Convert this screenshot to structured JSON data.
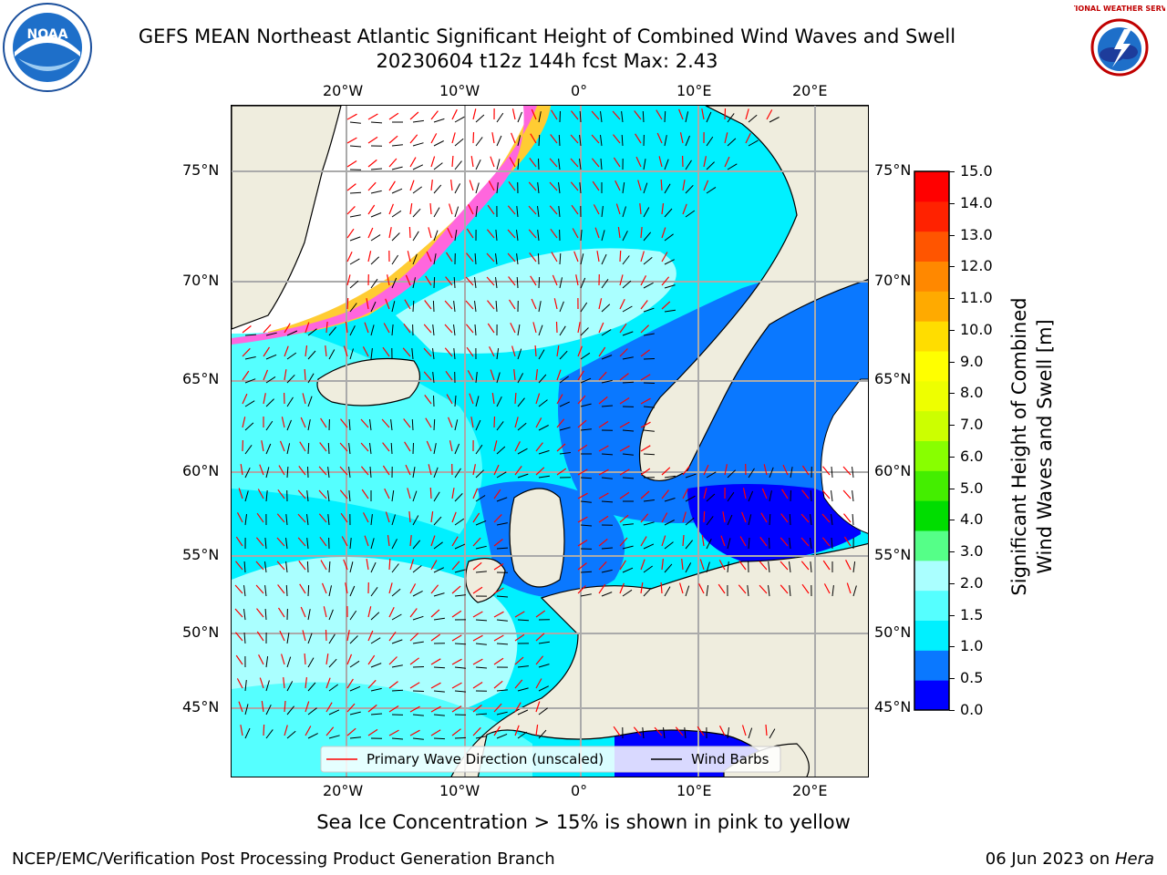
{
  "title": {
    "line1": "GEFS MEAN Northeast Atlantic Significant Height of Combined Wind Waves and Swell",
    "line2": "20230604 t12z 144h fcst   Max: 2.43"
  },
  "logos": {
    "left": {
      "icon": "noaa-logo",
      "text": "NOAA"
    },
    "right": {
      "icon": "nws-logo",
      "text": "NATIONAL WEATHER SERVICE"
    }
  },
  "map": {
    "lon_ticks_top": [
      "20°W",
      "10°W",
      "0°",
      "10°E",
      "20°E"
    ],
    "lon_ticks_bottom": [
      "20°W",
      "10°W",
      "0°",
      "10°E",
      "20°E"
    ],
    "lat_ticks_left": [
      "75°N",
      "70°N",
      "65°N",
      "60°N",
      "55°N",
      "50°N",
      "45°N"
    ],
    "lat_ticks_right": [
      "75°N",
      "70°N",
      "65°N",
      "60°N",
      "55°N",
      "50°N",
      "45°N"
    ],
    "legend": {
      "wave_direction": "Primary Wave Direction (unscaled)",
      "wind_barbs": "Wind Barbs"
    },
    "colors": {
      "land": "#efedde",
      "sea_ice_white": "#ffffff"
    }
  },
  "colorbar": {
    "label_line1": "Significant Height of Combined",
    "label_line2": "Wind Waves and Swell [m]",
    "ticks": [
      "15.0",
      "14.0",
      "13.0",
      "12.0",
      "11.0",
      "10.0",
      "9.0",
      "8.0",
      "7.0",
      "6.0",
      "5.0",
      "4.0",
      "3.0",
      "2.0",
      "1.5",
      "1.0",
      "0.5",
      "0.0"
    ],
    "colors": [
      "#0000ff",
      "#0a78ff",
      "#00f0ff",
      "#55ffff",
      "#aaffff",
      "#55ff88",
      "#00dd00",
      "#44ee00",
      "#88ff00",
      "#ccff00",
      "#eeff00",
      "#ffff00",
      "#ffdd00",
      "#ffaa00",
      "#ff8800",
      "#ff5500",
      "#ff2200",
      "#ff0000"
    ]
  },
  "caption": "Sea Ice Concentration > 15% is shown in pink to yellow",
  "footer": {
    "left": "NCEP/EMC/Verification Post Processing Product Generation Branch",
    "right_date": "06 Jun 2023 on ",
    "right_host": "Hera"
  }
}
